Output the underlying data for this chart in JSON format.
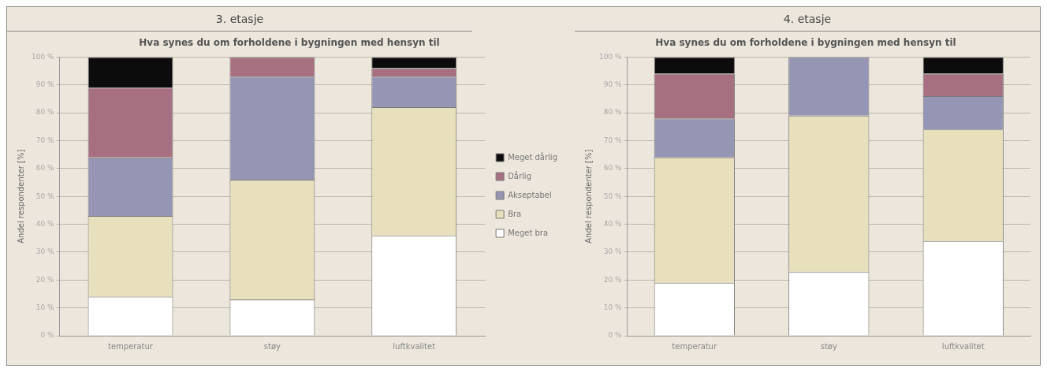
{
  "chart_data": [
    {
      "type": "bar",
      "title": "3. etasje",
      "subtitle": "Hva synes du om forholdene i bygningen med hensyn til",
      "ylabel": "Andel respondenter [%]",
      "categories": [
        "temperatur",
        "støy",
        "luftkvalitet"
      ],
      "stacked": true,
      "ylim": [
        0,
        100
      ],
      "yticks": [
        {
          "value": 0,
          "label": "0 %"
        },
        {
          "value": 10,
          "label": "10 %"
        },
        {
          "value": 20,
          "label": "20 %"
        },
        {
          "value": 30,
          "label": "30 %"
        },
        {
          "value": 40,
          "label": "40 %"
        },
        {
          "value": 50,
          "label": "50 %"
        },
        {
          "value": 60,
          "label": "60 %"
        },
        {
          "value": 70,
          "label": "70 %"
        },
        {
          "value": 80,
          "label": "80 %"
        },
        {
          "value": 90,
          "label": "90 %"
        },
        {
          "value": 100,
          "label": "100 %"
        }
      ],
      "grid": "y",
      "legend": "right",
      "series": [
        {
          "name": "Meget bra",
          "color": "#ffffff",
          "values": [
            14,
            13,
            36
          ]
        },
        {
          "name": "Bra",
          "color": "#e8e0bc",
          "values": [
            29,
            43,
            46
          ]
        },
        {
          "name": "Akseptabel",
          "color": "#9696b4",
          "values": [
            21,
            37,
            11
          ]
        },
        {
          "name": "Dårlig",
          "color": "#a67080",
          "values": [
            25,
            7,
            3
          ]
        },
        {
          "name": "Meget dårlig",
          "color": "#0c0c0c",
          "values": [
            11,
            0,
            4
          ]
        }
      ]
    },
    {
      "type": "bar",
      "title": "4. etasje",
      "subtitle": "Hva synes du om forholdene i bygningen med hensyn til",
      "ylabel": "Andel respondenter [%]",
      "categories": [
        "temperatur",
        "støy",
        "luftkvalitet"
      ],
      "stacked": true,
      "ylim": [
        0,
        100
      ],
      "yticks": [
        {
          "value": 0,
          "label": "0 %"
        },
        {
          "value": 10,
          "label": "10 %"
        },
        {
          "value": 20,
          "label": "20 %"
        },
        {
          "value": 30,
          "label": "30 %"
        },
        {
          "value": 40,
          "label": "40 %"
        },
        {
          "value": 50,
          "label": "50 %"
        },
        {
          "value": 60,
          "label": "60 %"
        },
        {
          "value": 70,
          "label": "70 %"
        },
        {
          "value": 80,
          "label": "80 %"
        },
        {
          "value": 90,
          "label": "90 %"
        },
        {
          "value": 100,
          "label": "100 %"
        }
      ],
      "grid": "y",
      "series": [
        {
          "color": "#ffffff",
          "values": [
            19,
            23,
            34
          ]
        },
        {
          "color": "#e8e0bc",
          "values": [
            45,
            56,
            40
          ]
        },
        {
          "color": "#9696b4",
          "values": [
            14,
            21,
            12
          ]
        },
        {
          "color": "#a67080",
          "values": [
            16,
            0,
            8
          ]
        },
        {
          "color": "#0c0c0c",
          "values": [
            6,
            0,
            6
          ]
        }
      ]
    }
  ]
}
